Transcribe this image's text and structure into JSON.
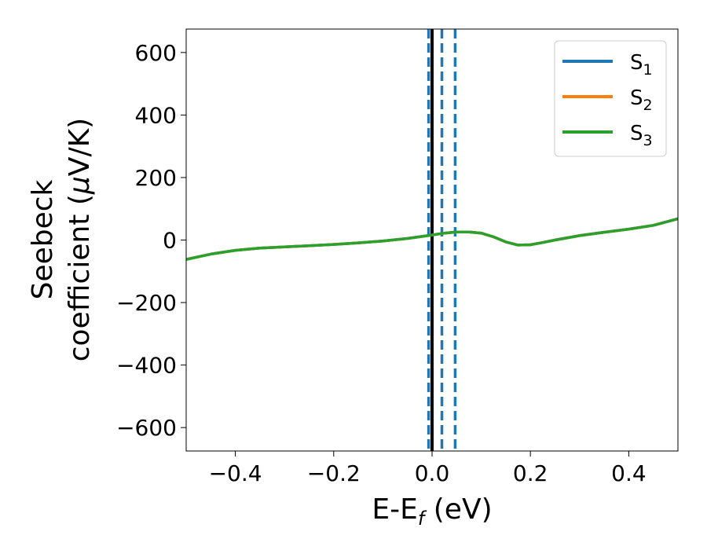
{
  "chart_data": {
    "type": "line",
    "xlabel": {
      "main": "E-E",
      "sub": "f",
      "unit": " (eV)"
    },
    "ylabel": {
      "line1": "Seebeck",
      "line2": "coefficient  (",
      "mu": "μ",
      "unit": "V/K)"
    },
    "xlim": [
      -0.5,
      0.5
    ],
    "ylim": [
      -675,
      675
    ],
    "xticks": [
      -0.4,
      -0.2,
      0.0,
      0.2,
      0.4
    ],
    "xtick_labels": [
      "−0.4",
      "−0.2",
      "0.0",
      "0.2",
      "0.4"
    ],
    "yticks": [
      -600,
      -400,
      -200,
      0,
      200,
      400,
      600
    ],
    "ytick_labels": [
      "−600",
      "−400",
      "−200",
      "0",
      "200",
      "400",
      "600"
    ],
    "grid": false,
    "legend": {
      "placement": "top-right"
    },
    "x": [
      -0.5,
      -0.45,
      -0.4,
      -0.35,
      -0.3,
      -0.25,
      -0.2,
      -0.15,
      -0.1,
      -0.05,
      0.0,
      0.025,
      0.05,
      0.075,
      0.1,
      0.125,
      0.15,
      0.175,
      0.2,
      0.225,
      0.25,
      0.3,
      0.35,
      0.4,
      0.45,
      0.5
    ],
    "series": [
      {
        "name": "S",
        "sub": "1",
        "color": "#1f77b4",
        "values": [
          -62,
          -45,
          -33,
          -26,
          -22,
          -18,
          -14,
          -9,
          -3,
          5,
          16,
          22,
          26,
          26,
          22,
          10,
          -6,
          -16,
          -15,
          -8,
          0,
          14,
          25,
          35,
          47,
          68
        ]
      },
      {
        "name": "S",
        "sub": "2",
        "color": "#ff7f0e",
        "values": [
          -62,
          -45,
          -33,
          -26,
          -22,
          -18,
          -14,
          -9,
          -3,
          5,
          16,
          22,
          26,
          26,
          22,
          10,
          -6,
          -16,
          -15,
          -8,
          0,
          14,
          25,
          35,
          47,
          68
        ]
      },
      {
        "name": "S",
        "sub": "3",
        "color": "#2ca02c",
        "values": [
          -62,
          -45,
          -33,
          -26,
          -22,
          -18,
          -14,
          -9,
          -3,
          5,
          16,
          22,
          26,
          26,
          22,
          10,
          -6,
          -16,
          -15,
          -8,
          0,
          14,
          25,
          35,
          47,
          68
        ]
      }
    ],
    "vlines": [
      {
        "x": 0.0,
        "color": "#000000",
        "style": "solid"
      },
      {
        "x": -0.007,
        "color": "#1f77b4",
        "style": "dashed"
      },
      {
        "x": 0.02,
        "color": "#1f77b4",
        "style": "dashed"
      },
      {
        "x": 0.047,
        "color": "#1f77b4",
        "style": "dashed"
      }
    ]
  }
}
